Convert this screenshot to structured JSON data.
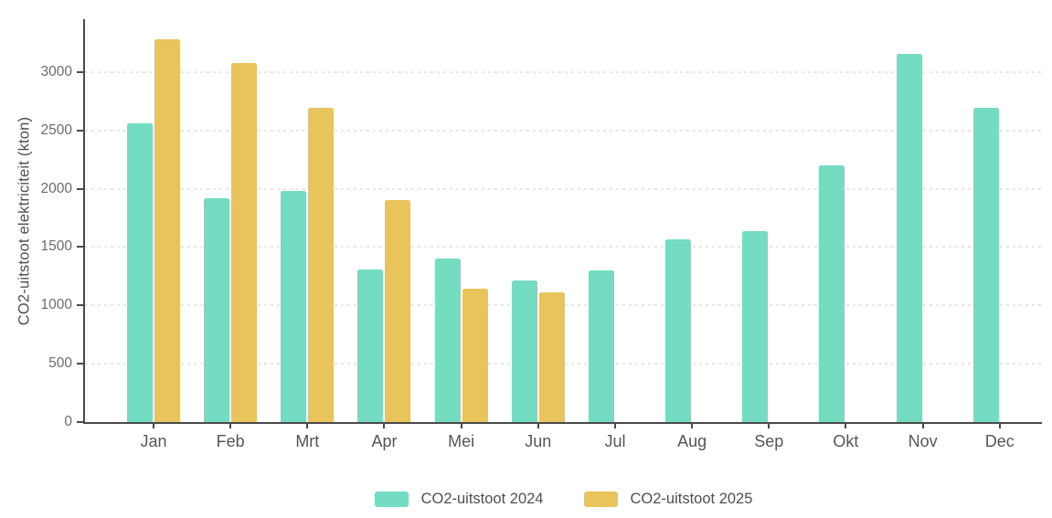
{
  "chart_data": {
    "type": "bar",
    "title": "",
    "xlabel": "",
    "ylabel": "CO2-uitstoot elektriciteit (kton)",
    "categories": [
      "Jan",
      "Feb",
      "Mrt",
      "Apr",
      "Mei",
      "Jun",
      "Jul",
      "Aug",
      "Sep",
      "Okt",
      "Nov",
      "Dec"
    ],
    "series": [
      {
        "name": "CO2-uitstoot 2024",
        "color": "#74dcc0",
        "values": [
          2560,
          1920,
          1980,
          1310,
          1405,
          1215,
          1300,
          1570,
          1640,
          2200,
          3155,
          2690
        ]
      },
      {
        "name": "CO2-uitstoot 2025",
        "color": "#e9c45d",
        "values": [
          3280,
          3080,
          2690,
          1900,
          1145,
          1115,
          null,
          null,
          null,
          null,
          null,
          null
        ]
      }
    ],
    "y_ticks": [
      0,
      500,
      1000,
      1500,
      2000,
      2500,
      3000
    ],
    "ylim": [
      0,
      3500
    ],
    "grid": "horizontal-dashed",
    "legend_position": "bottom",
    "axis_color": "#4a4a4a",
    "grid_color": "#e6e6e6",
    "tick_label_color": "#6b6b6b"
  }
}
